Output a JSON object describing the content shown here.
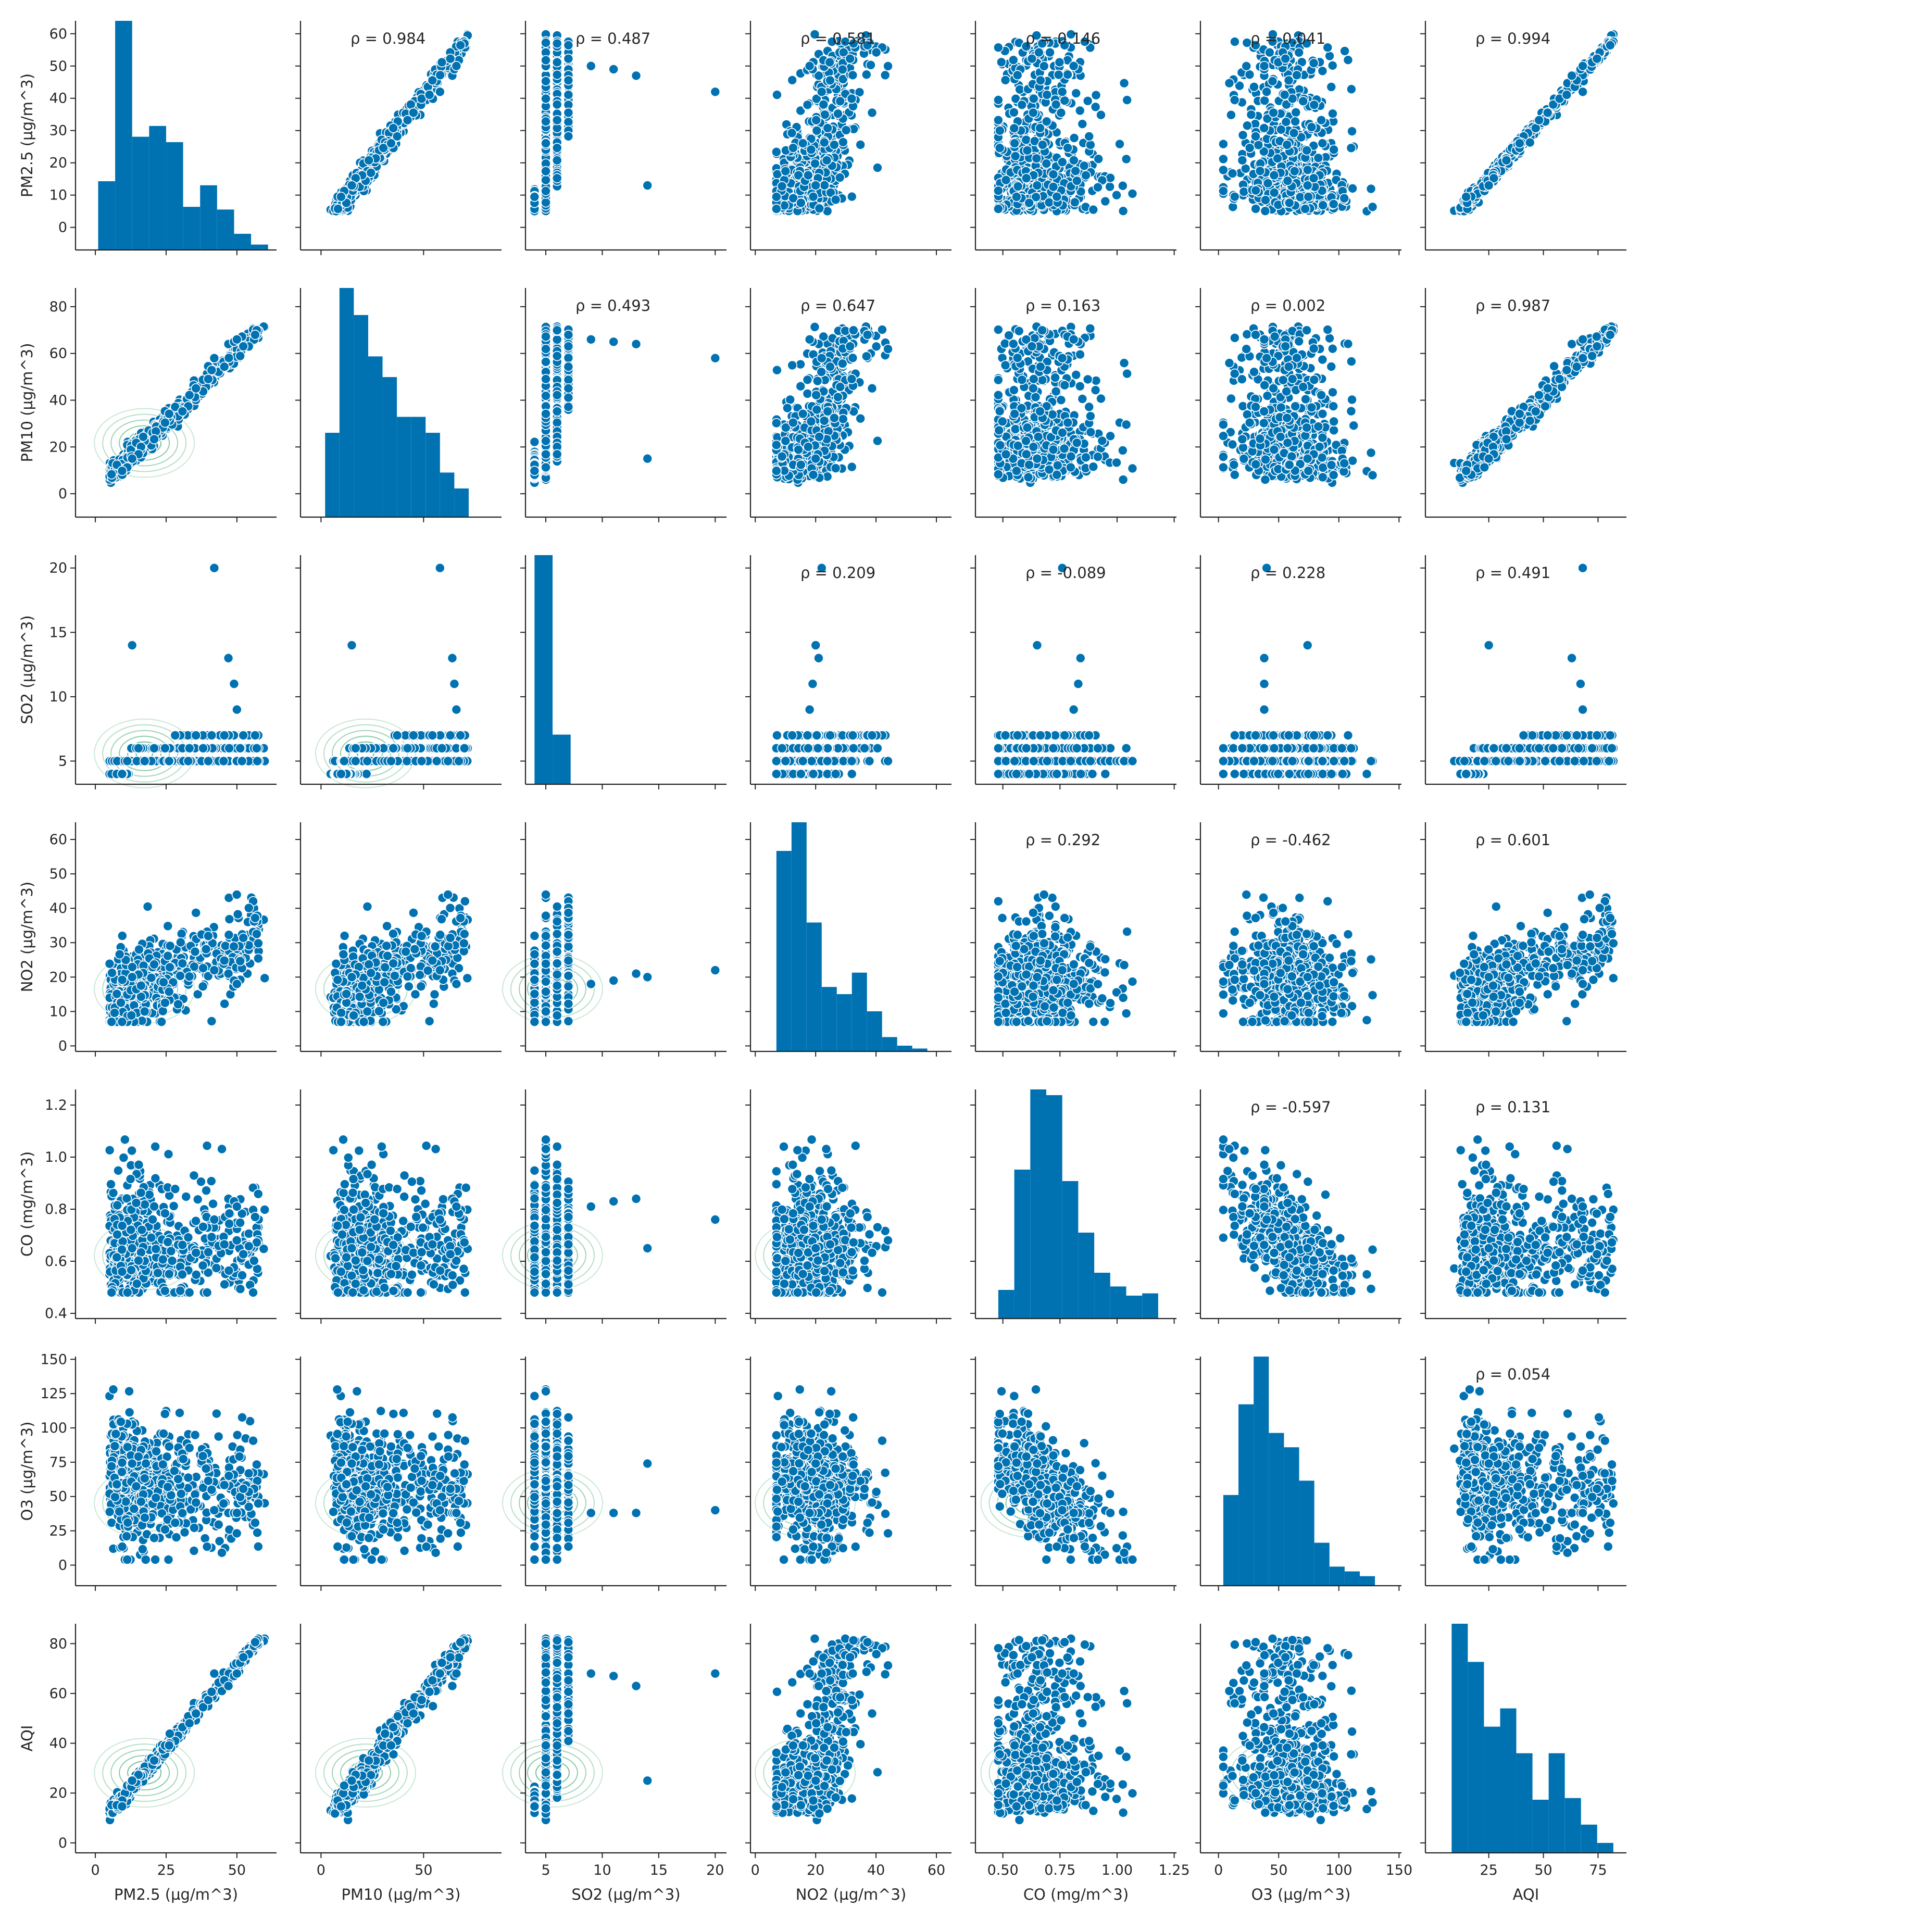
{
  "chart_data": {
    "type": "scatter",
    "subtype": "pairplot",
    "title": "",
    "variables": [
      {
        "label": "PM2.5 (µg/m^3)",
        "lim": [
          -7,
          64
        ],
        "ticks": [
          "0",
          "10",
          "20",
          "30",
          "40",
          "50",
          "60"
        ],
        "xticks": [
          "0",
          "25",
          "50"
        ]
      },
      {
        "label": "PM10 (µg/m^3)",
        "lim": [
          -10,
          88
        ],
        "ticks": [
          "0",
          "20",
          "40",
          "60",
          "80"
        ],
        "xticks": [
          "0",
          "50"
        ]
      },
      {
        "label": "SO2 (µg/m^3)",
        "lim": [
          3.2,
          21
        ],
        "ticks": [
          "5",
          "10",
          "15",
          "20"
        ],
        "xticks": [
          "5",
          "10",
          "15",
          "20"
        ]
      },
      {
        "label": "NO2 (µg/m^3)",
        "lim": [
          -1.6,
          65
        ],
        "ticks": [
          "0",
          "10",
          "20",
          "30",
          "40",
          "50",
          "60"
        ],
        "xticks": [
          "0",
          "20",
          "40",
          "60"
        ]
      },
      {
        "label": "CO (mg/m^3)",
        "lim": [
          0.38,
          1.26
        ],
        "ticks": [
          "0.4",
          "0.6",
          "0.8",
          "1.0",
          "1.2"
        ],
        "xticks": [
          "0.50",
          "0.75",
          "1.00",
          "1.25"
        ]
      },
      {
        "label": "O3 (µg/m^3)",
        "lim": [
          -15,
          152
        ],
        "ticks": [
          "0",
          "25",
          "50",
          "75",
          "100",
          "125",
          "150"
        ],
        "xticks": [
          "0",
          "50",
          "100",
          "150"
        ]
      },
      {
        "label": "AQI",
        "lim": [
          -4,
          88
        ],
        "ticks": [
          "0",
          "20",
          "40",
          "60",
          "80"
        ],
        "xticks": [
          "25",
          "50",
          "75"
        ]
      }
    ],
    "correlations": [
      {
        "row": "PM2.5 (µg/m^3)",
        "col": "PM10 (µg/m^3)",
        "text": "ρ = 0.984"
      },
      {
        "row": "PM2.5 (µg/m^3)",
        "col": "SO2 (µg/m^3)",
        "text": "ρ = 0.487"
      },
      {
        "row": "PM2.5 (µg/m^3)",
        "col": "NO2 (µg/m^3)",
        "text": "ρ = 0.581"
      },
      {
        "row": "PM2.5 (µg/m^3)",
        "col": "CO (mg/m^3)",
        "text": "ρ = 0.146"
      },
      {
        "row": "PM2.5 (µg/m^3)",
        "col": "O3 (µg/m^3)",
        "text": "ρ = 0.041"
      },
      {
        "row": "PM2.5 (µg/m^3)",
        "col": "AQI",
        "text": "ρ = 0.994"
      },
      {
        "row": "PM10 (µg/m^3)",
        "col": "SO2 (µg/m^3)",
        "text": "ρ = 0.493"
      },
      {
        "row": "PM10 (µg/m^3)",
        "col": "NO2 (µg/m^3)",
        "text": "ρ = 0.647"
      },
      {
        "row": "PM10 (µg/m^3)",
        "col": "CO (mg/m^3)",
        "text": "ρ = 0.163"
      },
      {
        "row": "PM10 (µg/m^3)",
        "col": "O3 (µg/m^3)",
        "text": "ρ = 0.002"
      },
      {
        "row": "PM10 (µg/m^3)",
        "col": "AQI",
        "text": "ρ = 0.987"
      },
      {
        "row": "SO2 (µg/m^3)",
        "col": "NO2 (µg/m^3)",
        "text": "ρ = 0.209"
      },
      {
        "row": "SO2 (µg/m^3)",
        "col": "CO (mg/m^3)",
        "text": "ρ = -0.089"
      },
      {
        "row": "SO2 (µg/m^3)",
        "col": "O3 (µg/m^3)",
        "text": "ρ = 0.228"
      },
      {
        "row": "SO2 (µg/m^3)",
        "col": "AQI",
        "text": "ρ = 0.491"
      },
      {
        "row": "NO2 (µg/m^3)",
        "col": "CO (mg/m^3)",
        "text": "ρ = 0.292"
      },
      {
        "row": "NO2 (µg/m^3)",
        "col": "O3 (µg/m^3)",
        "text": "ρ = -0.462"
      },
      {
        "row": "NO2 (µg/m^3)",
        "col": "AQI",
        "text": "ρ = 0.601"
      },
      {
        "row": "CO (mg/m^3)",
        "col": "O3 (µg/m^3)",
        "text": "ρ = -0.597"
      },
      {
        "row": "CO (mg/m^3)",
        "col": "AQI",
        "text": "ρ = 0.131"
      },
      {
        "row": "O3 (µg/m^3)",
        "col": "AQI",
        "text": "ρ = 0.054"
      }
    ],
    "histograms": [
      {
        "variable": "PM2.5 (µg/m^3)",
        "edges": [
          1,
          7,
          13,
          19,
          25,
          31,
          37,
          43,
          49,
          55,
          61
        ],
        "counts": [
          51,
          170,
          84,
          92,
          80,
          32,
          48,
          30,
          12,
          4
        ]
      },
      {
        "variable": "PM10 (µg/m^3)",
        "edges": [
          2,
          9,
          16,
          23,
          30,
          37,
          44,
          51,
          58,
          65,
          72
        ],
        "counts": [
          53,
          144,
          127,
          101,
          88,
          63,
          63,
          53,
          28,
          18
        ]
      },
      {
        "variable": "SO2 (µg/m^3)",
        "edges": [
          4,
          5.6,
          7.2,
          8.8,
          10.4,
          12,
          13.6,
          15.2,
          16.8,
          18.4,
          20
        ],
        "counts": [
          600,
          130,
          0,
          0,
          0,
          0,
          0,
          0,
          0,
          0
        ]
      },
      {
        "variable": "NO2 (µg/m^3)",
        "edges": [
          7,
          12,
          17,
          22,
          27,
          32,
          37,
          42,
          47,
          52,
          57
        ],
        "counts": [
          140,
          160,
          90,
          45,
          40,
          55,
          28,
          10,
          4,
          2
        ]
      },
      {
        "variable": "CO (mg/m^3)",
        "edges": [
          0.48,
          0.55,
          0.62,
          0.69,
          0.76,
          0.83,
          0.9,
          0.97,
          1.04,
          1.11,
          1.18
        ],
        "counts": [
          25,
          130,
          200,
          195,
          120,
          75,
          40,
          28,
          20,
          22
        ]
      },
      {
        "variable": "O3 (µg/m^3)",
        "edges": [
          4,
          16.6,
          29.2,
          41.8,
          54.4,
          67,
          79.6,
          92.2,
          104.8,
          117.4,
          130
        ],
        "counts": [
          95,
          190,
          240,
          160,
          145,
          110,
          45,
          20,
          15,
          10
        ]
      },
      {
        "variable": "AQI",
        "edges": [
          8,
          15.4,
          22.8,
          30.2,
          37.6,
          45,
          52.4,
          59.8,
          67.2,
          74.6,
          82
        ],
        "counts": [
          138,
          115,
          76,
          87,
          60,
          32,
          60,
          33,
          17,
          6
        ]
      }
    ],
    "colors": {
      "points": "#0072b2",
      "point_edge": "#ffffff",
      "kde": "#2ca25f",
      "axis": "#262626"
    }
  }
}
